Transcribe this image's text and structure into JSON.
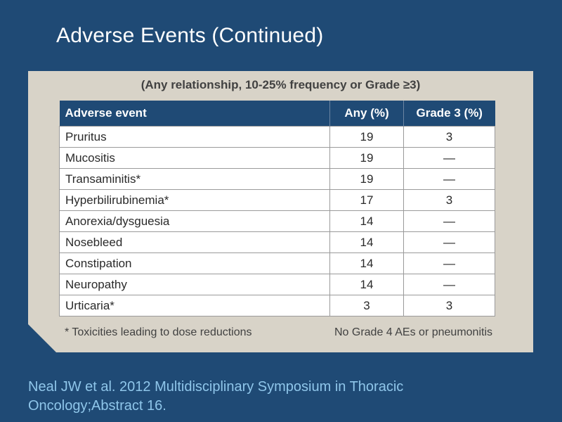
{
  "slide": {
    "title": "Adverse Events (Continued)",
    "subtitle": "(Any relationship, 10-25% frequency or Grade ≥3)",
    "table": {
      "headers": [
        "Adverse event",
        "Any (%)",
        "Grade 3 (%)"
      ],
      "rows": [
        [
          "Pruritus",
          "19",
          "3"
        ],
        [
          "Mucositis",
          "19",
          "—"
        ],
        [
          "Transaminitis*",
          "19",
          "—"
        ],
        [
          "Hyperbilirubinemia*",
          "17",
          "3"
        ],
        [
          "Anorexia/dysguesia",
          "14",
          "—"
        ],
        [
          "Nosebleed",
          "14",
          "—"
        ],
        [
          "Constipation",
          "14",
          "—"
        ],
        [
          "Neuropathy",
          "14",
          "—"
        ],
        [
          "Urticaria*",
          "3",
          "3"
        ]
      ]
    },
    "footnote_left": "* Toxicities leading to dose reductions",
    "footnote_right": "No Grade 4 AEs or pneumonitis",
    "citation_line1": "Neal JW et al. 2012 Multidisciplinary Symposium in Thoracic",
    "citation_line2": "Oncology;Abstract 16."
  },
  "colors": {
    "background": "#1f4a75",
    "panel": "#d8d3c8",
    "header_fill": "#1f4a75",
    "citation_text": "#8fc6ea"
  }
}
